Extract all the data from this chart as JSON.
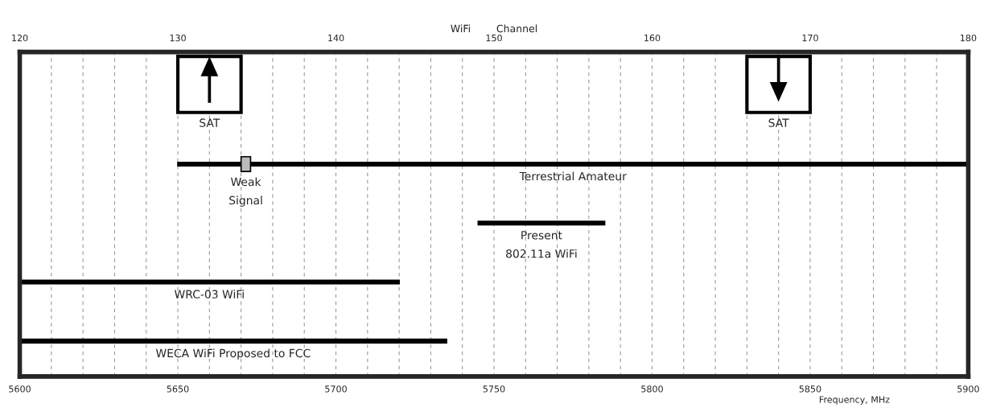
{
  "chart_data": {
    "type": "bar",
    "orientation": "horizontal",
    "categories": [
      null,
      null,
      null,
      null,
      null
    ],
    "series": [
      {
        "name": "SAT",
        "color": "#ffffff",
        "values": [
          20,
          null,
          null,
          null,
          null
        ],
        "base": [
          5650,
          null,
          null,
          null,
          null
        ]
      },
      {
        "name": "SAT",
        "color": "#ffffff",
        "values": [
          20,
          null,
          null,
          null,
          null
        ],
        "base": [
          5830,
          null,
          null,
          null,
          null
        ]
      },
      {
        "name": "Terrestrial Amateur",
        "color": "#000000",
        "values": [
          null,
          250,
          null,
          null,
          null
        ],
        "base": [
          null,
          5650,
          null,
          null,
          null
        ]
      },
      {
        "name": "Weak\nSignal",
        "color": "#bbbbbb",
        "values": [
          null,
          3,
          null,
          null,
          null
        ],
        "base": [
          null,
          5670,
          null,
          null,
          null
        ]
      },
      {
        "name": "Present\n802.11a WiFi",
        "color": "#000000",
        "values": [
          null,
          null,
          40,
          null,
          null
        ],
        "base": [
          null,
          null,
          5745,
          null,
          null
        ]
      },
      {
        "name": "WRC-03 WiFi",
        "color": "#000000",
        "values": [
          null,
          null,
          null,
          120,
          null
        ],
        "base": [
          null,
          null,
          null,
          5600,
          null
        ]
      },
      {
        "name": "WECA WiFi Proposed to FCC",
        "color": "#000000",
        "values": [
          null,
          null,
          null,
          null,
          135
        ],
        "base": [
          null,
          null,
          null,
          null,
          5600
        ]
      }
    ],
    "xlim": [
      5600,
      5900
    ],
    "xticks": [
      5600,
      {
        "value": 5610,
        "label": null
      },
      {
        "value": 5620,
        "label": null
      },
      {
        "value": 5630,
        "label": null
      },
      {
        "value": 5640,
        "label": null
      },
      5650,
      {
        "value": 5660,
        "label": null
      },
      {
        "value": 5670,
        "label": null
      },
      {
        "value": 5680,
        "label": null
      },
      {
        "value": 5690,
        "label": null
      },
      5700,
      {
        "value": 5710,
        "label": null
      },
      {
        "value": 5720,
        "label": null
      },
      {
        "value": 5730,
        "label": null
      },
      {
        "value": 5740,
        "label": null
      },
      5750,
      {
        "value": 5760,
        "label": null
      },
      {
        "value": 5770,
        "label": null
      },
      {
        "value": 5780,
        "label": null
      },
      {
        "value": 5790,
        "label": null
      },
      5800,
      {
        "value": 5810,
        "label": null
      },
      {
        "value": 5820,
        "label": null
      },
      {
        "value": 5830,
        "label": null
      },
      {
        "value": 5840,
        "label": null
      },
      5850,
      {
        "value": 5860,
        "label": null
      },
      {
        "value": 5870,
        "label": null
      },
      {
        "value": 5880,
        "label": null
      },
      {
        "value": 5890,
        "label": null
      },
      5900
    ],
    "x2lim": [
      120,
      180
    ],
    "x2ticks": [
      120,
      130,
      140,
      150,
      160,
      170,
      180
    ],
    "x2label": "WiFi        Channel",
    "xlabel": "Frequency, MHz",
    "grid": "x",
    "legend": false
  }
}
